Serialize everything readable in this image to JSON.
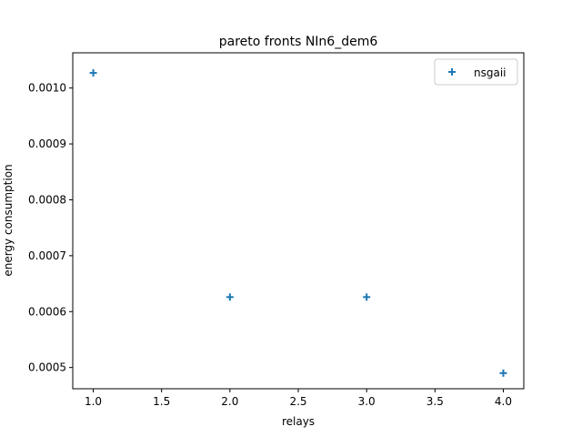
{
  "chart_data": {
    "type": "scatter",
    "title": "pareto fronts NIn6_dem6",
    "xlabel": "relays",
    "ylabel": "energy consumption",
    "xlim": [
      0.85,
      4.15
    ],
    "ylim": [
      0.000462,
      0.001063
    ],
    "xticks": [
      1.0,
      1.5,
      2.0,
      2.5,
      3.0,
      3.5,
      4.0
    ],
    "xtick_labels": [
      "1.0",
      "1.5",
      "2.0",
      "2.5",
      "3.0",
      "3.5",
      "4.0"
    ],
    "yticks": [
      0.0005,
      0.0006,
      0.0007,
      0.0008,
      0.0009,
      0.001
    ],
    "ytick_labels": [
      "0.0005",
      "0.0006",
      "0.0007",
      "0.0008",
      "0.0009",
      "0.0010"
    ],
    "grid": false,
    "legend_position": "top-right",
    "series": [
      {
        "name": "nsgaii",
        "marker": "plus",
        "color": "#1f77b4",
        "points": [
          {
            "x": 1.0,
            "y": 0.001027
          },
          {
            "x": 2.0,
            "y": 0.000626
          },
          {
            "x": 3.0,
            "y": 0.000626
          },
          {
            "x": 4.0,
            "y": 0.00049
          }
        ]
      }
    ]
  }
}
